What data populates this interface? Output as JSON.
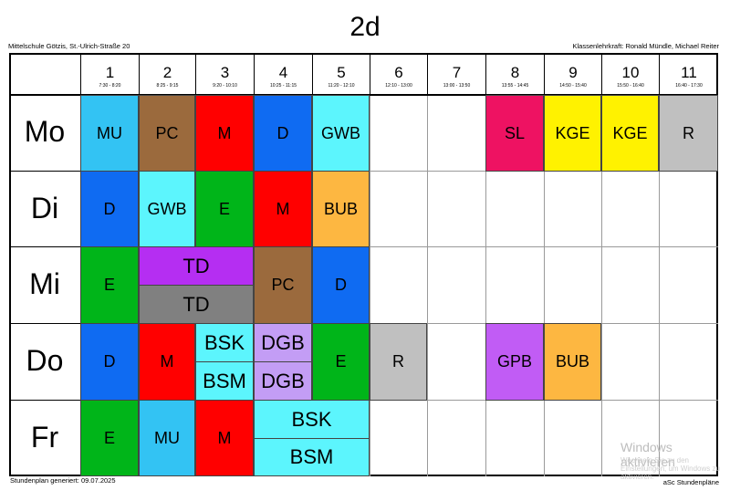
{
  "title": "2d",
  "school": "Mittelschule Götzis, St.-Ulrich-Straße 20",
  "class_teacher": "Klassenlehrkraft: Ronald Mündle, Michael Reiter",
  "periods": [
    {
      "num": "1",
      "time": "7:30 - 8:20"
    },
    {
      "num": "2",
      "time": "8:25 - 9:15"
    },
    {
      "num": "3",
      "time": "9:20 - 10:10"
    },
    {
      "num": "4",
      "time": "10:25 - 11:15"
    },
    {
      "num": "5",
      "time": "11:20 - 12:10"
    },
    {
      "num": "6",
      "time": "12:10 - 13:00"
    },
    {
      "num": "7",
      "time": "13:00 - 13:50"
    },
    {
      "num": "8",
      "time": "13:55 - 14:45"
    },
    {
      "num": "9",
      "time": "14:50 - 15:40"
    },
    {
      "num": "10",
      "time": "15:50 - 16:40"
    },
    {
      "num": "11",
      "time": "16:40 - 17:30"
    }
  ],
  "days": [
    "Mo",
    "Di",
    "Mi",
    "Do",
    "Fr"
  ],
  "lessons": {
    "mo": [
      {
        "label": "MU",
        "color": "#33c3f3"
      },
      {
        "label": "PC",
        "color": "#9b6a3d"
      },
      {
        "label": "M",
        "color": "#ff0000"
      },
      {
        "label": "D",
        "color": "#0f6bf2"
      },
      {
        "label": "GWB",
        "color": "#5cf5fd"
      },
      {
        "label": "SL",
        "color": "#ee1262"
      },
      {
        "label": "KGE",
        "color": "#fff200"
      },
      {
        "label": "KGE",
        "color": "#fff200"
      },
      {
        "label": "R",
        "color": "#c0c0c0"
      }
    ],
    "di": [
      {
        "label": "D",
        "color": "#0f6bf2"
      },
      {
        "label": "GWB",
        "color": "#5cf5fd"
      },
      {
        "label": "E",
        "color": "#00b519"
      },
      {
        "label": "M",
        "color": "#ff0000"
      },
      {
        "label": "BUB",
        "color": "#fdb741"
      }
    ],
    "mi": [
      {
        "label": "E",
        "color": "#00b519"
      },
      {
        "label": "TD",
        "color": "#b52ef2"
      },
      {
        "label": "TD",
        "color": "#808080"
      },
      {
        "label": "PC",
        "color": "#9b6a3d"
      },
      {
        "label": "D",
        "color": "#0f6bf2"
      }
    ],
    "do": [
      {
        "label": "D",
        "color": "#0f6bf2"
      },
      {
        "label": "M",
        "color": "#ff0000"
      },
      {
        "label": "BSK",
        "color": "#5cf5fd"
      },
      {
        "label": "BSM",
        "color": "#5cf5fd"
      },
      {
        "label": "DGB",
        "color": "#c39df5"
      },
      {
        "label": "DGB",
        "color": "#c39df5"
      },
      {
        "label": "E",
        "color": "#00b519"
      },
      {
        "label": "R",
        "color": "#c0c0c0"
      },
      {
        "label": "GPB",
        "color": "#c15cf5"
      },
      {
        "label": "BUB",
        "color": "#fdb741"
      }
    ],
    "fr": [
      {
        "label": "E",
        "color": "#00b519"
      },
      {
        "label": "MU",
        "color": "#33c3f3"
      },
      {
        "label": "M",
        "color": "#ff0000"
      },
      {
        "label": "BSK",
        "color": "#5cf5fd"
      },
      {
        "label": "BSM",
        "color": "#5cf5fd"
      }
    ]
  },
  "footer_left": "Stundenplan generiert: 09.07.2025",
  "footer_right": "aSc Stundenpläne",
  "watermark_line1": "Windows aktivieren",
  "watermark_line2": "Wechseln Sie zu den Einstellungen, um Windows zu aktivieren."
}
